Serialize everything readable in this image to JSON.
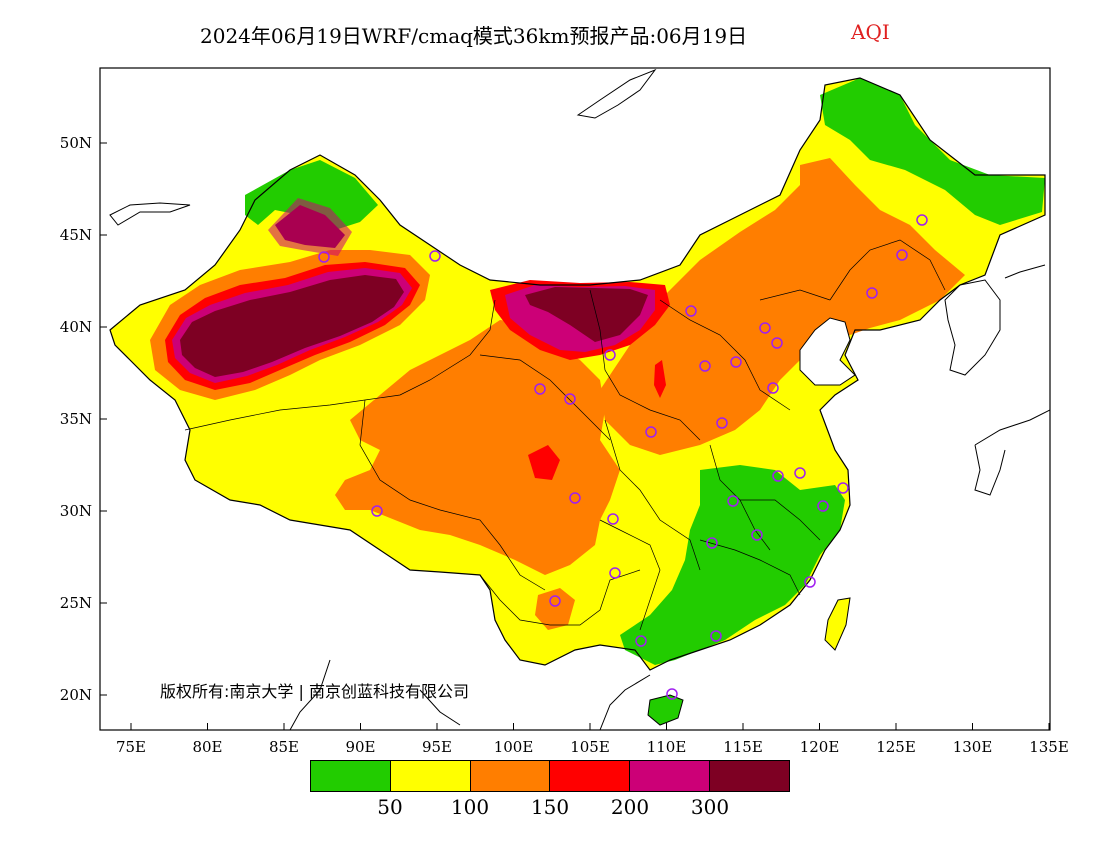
{
  "title": {
    "main": "2024年06月19日WRF/cmaq模式36km预报产品:06月19日",
    "variable": "AQI"
  },
  "colors": {
    "level1": "#22cc00",
    "level2": "#ffff00",
    "level3": "#ff7e00",
    "level4": "#ff0000",
    "level5": "#cc0077",
    "level6": "#7e0023",
    "station_marker": "#a020f0"
  },
  "axes": {
    "lat_labels": [
      "50N",
      "45N",
      "40N",
      "35N",
      "30N",
      "25N",
      "20N"
    ],
    "lon_labels": [
      "75E",
      "80E",
      "85E",
      "90E",
      "95E",
      "100E",
      "105E",
      "110E",
      "115E",
      "120E",
      "125E",
      "130E",
      "135E"
    ]
  },
  "legend": {
    "thresholds": [
      "50",
      "100",
      "150",
      "200",
      "300"
    ]
  },
  "copyright": "版权所有:南京大学 | 南京创蓝科技有限公司"
}
